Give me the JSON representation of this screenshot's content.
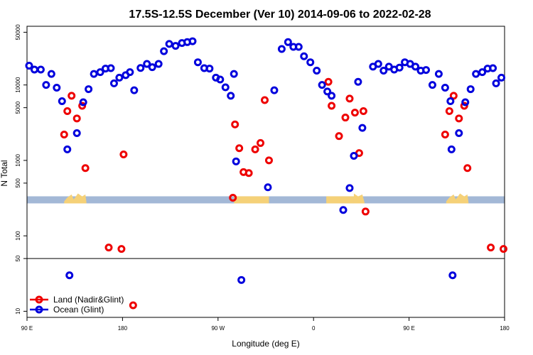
{
  "chart_data": {
    "type": "scatter",
    "title": "17.5S-12.5S December (Ver 10)   2014-09-06 to 2022-02-28",
    "xlabel": "Longitude (deg E)",
    "ylabel": "N Total",
    "yscale": "log",
    "xlim": [
      90,
      540
    ],
    "ylim": [
      8.3,
      60000
    ],
    "x_ticks": [
      {
        "value": 90,
        "label": "90 E"
      },
      {
        "value": 180,
        "label": "180"
      },
      {
        "value": 270,
        "label": "90 W"
      },
      {
        "value": 360,
        "label": "0"
      },
      {
        "value": 450,
        "label": "90 E"
      },
      {
        "value": 540,
        "label": "180"
      }
    ],
    "y_ticks": [
      {
        "value": 10,
        "label": "10"
      },
      {
        "value": 50,
        "label": "50"
      },
      {
        "value": 100,
        "label": "100"
      },
      {
        "value": 500,
        "label": "500"
      },
      {
        "value": 1000,
        "label": "1000"
      },
      {
        "value": 5000,
        "label": "5000"
      },
      {
        "value": 10000,
        "label": "10000"
      },
      {
        "value": 50000,
        "label": "50000"
      }
    ],
    "reference_line_y": 50,
    "land_mask_y": 300,
    "colors": {
      "land": "#ee0000",
      "ocean": "#0000dd",
      "mask_ocean": "#a3b8d6",
      "mask_land": "#f5d178"
    },
    "series": [
      {
        "name": "Land (Nadir&Glint)",
        "color": "#ee0000",
        "points": [
          [
            125,
            2200
          ],
          [
            128,
            4500
          ],
          [
            132,
            7200
          ],
          [
            137,
            3600
          ],
          [
            142,
            5300
          ],
          [
            145,
            790
          ],
          [
            167,
            70
          ],
          [
            179,
            67
          ],
          [
            181,
            1200
          ],
          [
            190,
            12
          ],
          [
            284,
            320
          ],
          [
            286,
            3000
          ],
          [
            290,
            1450
          ],
          [
            294,
            700
          ],
          [
            299,
            680
          ],
          [
            305,
            1400
          ],
          [
            310,
            1700
          ],
          [
            314,
            6300
          ],
          [
            318,
            1000
          ],
          [
            374,
            11000
          ],
          [
            377,
            5300
          ],
          [
            384,
            2100
          ],
          [
            390,
            3700
          ],
          [
            394,
            6600
          ],
          [
            399,
            4300
          ],
          [
            403,
            1250
          ],
          [
            407,
            4500
          ],
          [
            409,
            210
          ],
          [
            484,
            2200
          ],
          [
            488,
            4500
          ],
          [
            492,
            7200
          ],
          [
            497,
            3600
          ],
          [
            502,
            5300
          ],
          [
            505,
            790
          ],
          [
            527,
            70
          ],
          [
            539,
            67
          ]
        ]
      },
      {
        "name": "Ocean (Glint)",
        "color": "#0000dd",
        "points": [
          [
            92,
            18000
          ],
          [
            97,
            16000
          ],
          [
            103,
            16000
          ],
          [
            108,
            10000
          ],
          [
            113,
            14000
          ],
          [
            118,
            9200
          ],
          [
            123,
            6100
          ],
          [
            128,
            1400
          ],
          [
            130,
            30
          ],
          [
            137,
            2300
          ],
          [
            143,
            5900
          ],
          [
            148,
            8800
          ],
          [
            153,
            14000
          ],
          [
            159,
            14800
          ],
          [
            164,
            16500
          ],
          [
            169,
            16700
          ],
          [
            172,
            10500
          ],
          [
            177,
            12500
          ],
          [
            183,
            13500
          ],
          [
            187,
            14800
          ],
          [
            191,
            8500
          ],
          [
            197,
            16800
          ],
          [
            203,
            19000
          ],
          [
            208,
            17200
          ],
          [
            214,
            19000
          ],
          [
            219,
            28000
          ],
          [
            224,
            35000
          ],
          [
            230,
            33000
          ],
          [
            236,
            36000
          ],
          [
            241,
            37000
          ],
          [
            246,
            38000
          ],
          [
            251,
            20000
          ],
          [
            257,
            16700
          ],
          [
            262,
            16500
          ],
          [
            268,
            12500
          ],
          [
            272,
            11800
          ],
          [
            277,
            9300
          ],
          [
            282,
            7200
          ],
          [
            285,
            14000
          ],
          [
            287,
            970
          ],
          [
            292,
            26
          ],
          [
            317,
            440
          ],
          [
            323,
            8500
          ],
          [
            330,
            30000
          ],
          [
            336,
            37000
          ],
          [
            341,
            32000
          ],
          [
            346,
            32000
          ],
          [
            351,
            24000
          ],
          [
            357,
            20000
          ],
          [
            363,
            15500
          ],
          [
            368,
            10000
          ],
          [
            373,
            8200
          ],
          [
            377,
            7200
          ],
          [
            388,
            220
          ],
          [
            394,
            430
          ],
          [
            398,
            1150
          ],
          [
            402,
            11000
          ],
          [
            406,
            2700
          ],
          [
            416,
            17500
          ],
          [
            421,
            19000
          ],
          [
            426,
            15500
          ],
          [
            431,
            17500
          ],
          [
            436,
            16000
          ],
          [
            441,
            17000
          ],
          [
            446,
            20000
          ],
          [
            451,
            19000
          ],
          [
            456,
            17500
          ],
          [
            461,
            15500
          ],
          [
            466,
            15800
          ],
          [
            472,
            10000
          ],
          [
            478,
            14000
          ],
          [
            484,
            9200
          ],
          [
            489,
            6100
          ],
          [
            490,
            1400
          ],
          [
            491,
            30
          ],
          [
            497,
            2300
          ],
          [
            503,
            5900
          ],
          [
            508,
            8800
          ],
          [
            513,
            14000
          ],
          [
            519,
            14800
          ],
          [
            524,
            16500
          ],
          [
            529,
            16700
          ],
          [
            532,
            10500
          ],
          [
            537,
            12500
          ]
        ]
      }
    ],
    "land_segments": [
      {
        "x0": 125,
        "x1": 146,
        "peaks": [
          [
            125,
            0.2
          ],
          [
            128,
            0.6
          ],
          [
            132,
            0.9
          ],
          [
            134,
            0.4
          ],
          [
            138,
            1.0
          ],
          [
            142,
            0.7
          ],
          [
            145,
            0.9
          ],
          [
            146,
            0.1
          ]
        ]
      },
      {
        "x0": 285,
        "x1": 318,
        "peaks": []
      },
      {
        "x0": 372,
        "x1": 398,
        "peaks": []
      },
      {
        "x0": 398,
        "x1": 408,
        "peaks": [
          [
            398,
            1.0
          ],
          [
            402,
            0.7
          ],
          [
            406,
            0.9
          ],
          [
            408,
            0.1
          ]
        ]
      },
      {
        "x0": 485,
        "x1": 506,
        "peaks": [
          [
            485,
            0.2
          ],
          [
            488,
            0.6
          ],
          [
            492,
            0.9
          ],
          [
            494,
            0.4
          ],
          [
            498,
            1.0
          ],
          [
            502,
            0.7
          ],
          [
            505,
            0.9
          ],
          [
            506,
            0.1
          ]
        ]
      }
    ],
    "legend": {
      "position": "bottom-left"
    }
  }
}
